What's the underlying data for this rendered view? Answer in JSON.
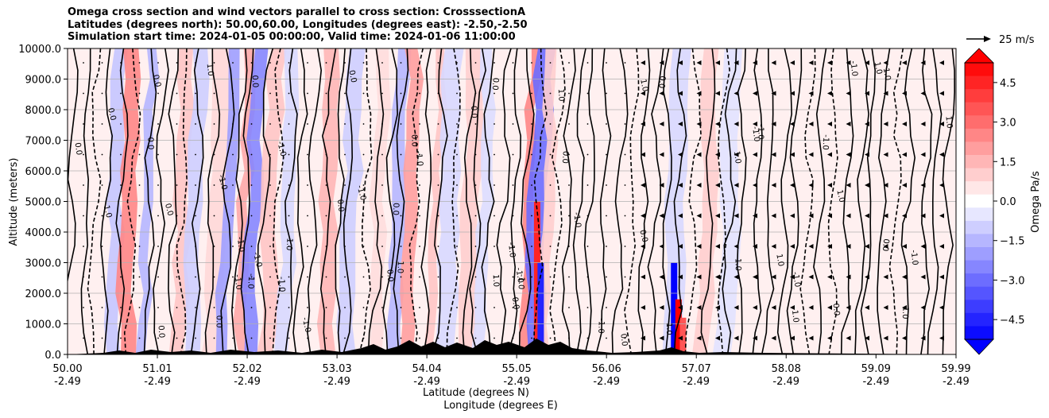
{
  "chart_data": {
    "type": "heatmap",
    "title_lines": [
      "Omega cross section and wind vectors parallel to cross section: CrosssectionA",
      "Latitudes (degrees north): 50.00,60.00, Longitudes (degrees east): -2.50,-2.50",
      "Simulation start time: 2024-01-05 00:00:00, Valid time: 2024-01-06 11:00:00"
    ],
    "ylabel": "Altitude (meters)",
    "xlabel": "Latitude (degrees N)",
    "xlabel2": "Longitude (degrees E)",
    "ylim": [
      0,
      10000
    ],
    "xlim": [
      50.0,
      59.99
    ],
    "y_ticks": [
      "0.0",
      "1000.0",
      "2000.0",
      "3000.0",
      "4000.0",
      "5000.0",
      "6000.0",
      "7000.0",
      "8000.0",
      "9000.0",
      "10000.0"
    ],
    "x_ticks": [
      {
        "lat": "50.00",
        "lon": "-2.49"
      },
      {
        "lat": "51.01",
        "lon": "-2.49"
      },
      {
        "lat": "52.02",
        "lon": "-2.49"
      },
      {
        "lat": "53.03",
        "lon": "-2.49"
      },
      {
        "lat": "54.04",
        "lon": "-2.49"
      },
      {
        "lat": "55.05",
        "lon": "-2.49"
      },
      {
        "lat": "56.06",
        "lon": "-2.49"
      },
      {
        "lat": "57.07",
        "lon": "-2.49"
      },
      {
        "lat": "58.08",
        "lon": "-2.49"
      },
      {
        "lat": "59.09",
        "lon": "-2.49"
      },
      {
        "lat": "59.99",
        "lon": "-2.49"
      }
    ],
    "colorbar": {
      "label": "Omega Pa/s",
      "range": [
        -5.25,
        5.25
      ],
      "ticks": [
        "4.5",
        "3.0",
        "1.5",
        "0.0",
        "−1.5",
        "−3.0",
        "−4.5"
      ],
      "colormap": "bwr",
      "extend": "both"
    },
    "quiver_key": "25 m/s",
    "contour_labels": [
      "-1.0",
      "1.0",
      "0.0"
    ],
    "bands": [
      {
        "lat": 50.6,
        "omega": -1.2
      },
      {
        "lat": 50.75,
        "omega": 2.5
      },
      {
        "lat": 50.95,
        "omega": -1.5
      },
      {
        "lat": 51.35,
        "omega": 1.2
      },
      {
        "lat": 51.5,
        "omega": -1.0
      },
      {
        "lat": 51.75,
        "omega": 0.8
      },
      {
        "lat": 51.85,
        "omega": -2.0
      },
      {
        "lat": 52.05,
        "omega": 1.8
      },
      {
        "lat": 52.15,
        "omega": -2.5
      },
      {
        "lat": 52.35,
        "omega": 1.2
      },
      {
        "lat": 52.55,
        "omega": -0.8
      },
      {
        "lat": 53.0,
        "omega": 1.5
      },
      {
        "lat": 53.25,
        "omega": -1.0
      },
      {
        "lat": 53.55,
        "omega": 0.7
      },
      {
        "lat": 53.75,
        "omega": -1.5
      },
      {
        "lat": 53.9,
        "omega": 2.0
      },
      {
        "lat": 54.2,
        "omega": 1.2
      },
      {
        "lat": 54.35,
        "omega": -0.8
      },
      {
        "lat": 54.6,
        "omega": 1.0
      },
      {
        "lat": 54.75,
        "omega": -0.7
      },
      {
        "lat": 55.25,
        "omega": 2.5
      },
      {
        "lat": 55.35,
        "omega": -3.0
      },
      {
        "lat": 55.45,
        "omega": 1.0
      },
      {
        "lat": 56.9,
        "omega": -0.8
      },
      {
        "lat": 57.25,
        "omega": 1.0
      },
      {
        "lat": 57.5,
        "omega": -0.6
      }
    ]
  }
}
